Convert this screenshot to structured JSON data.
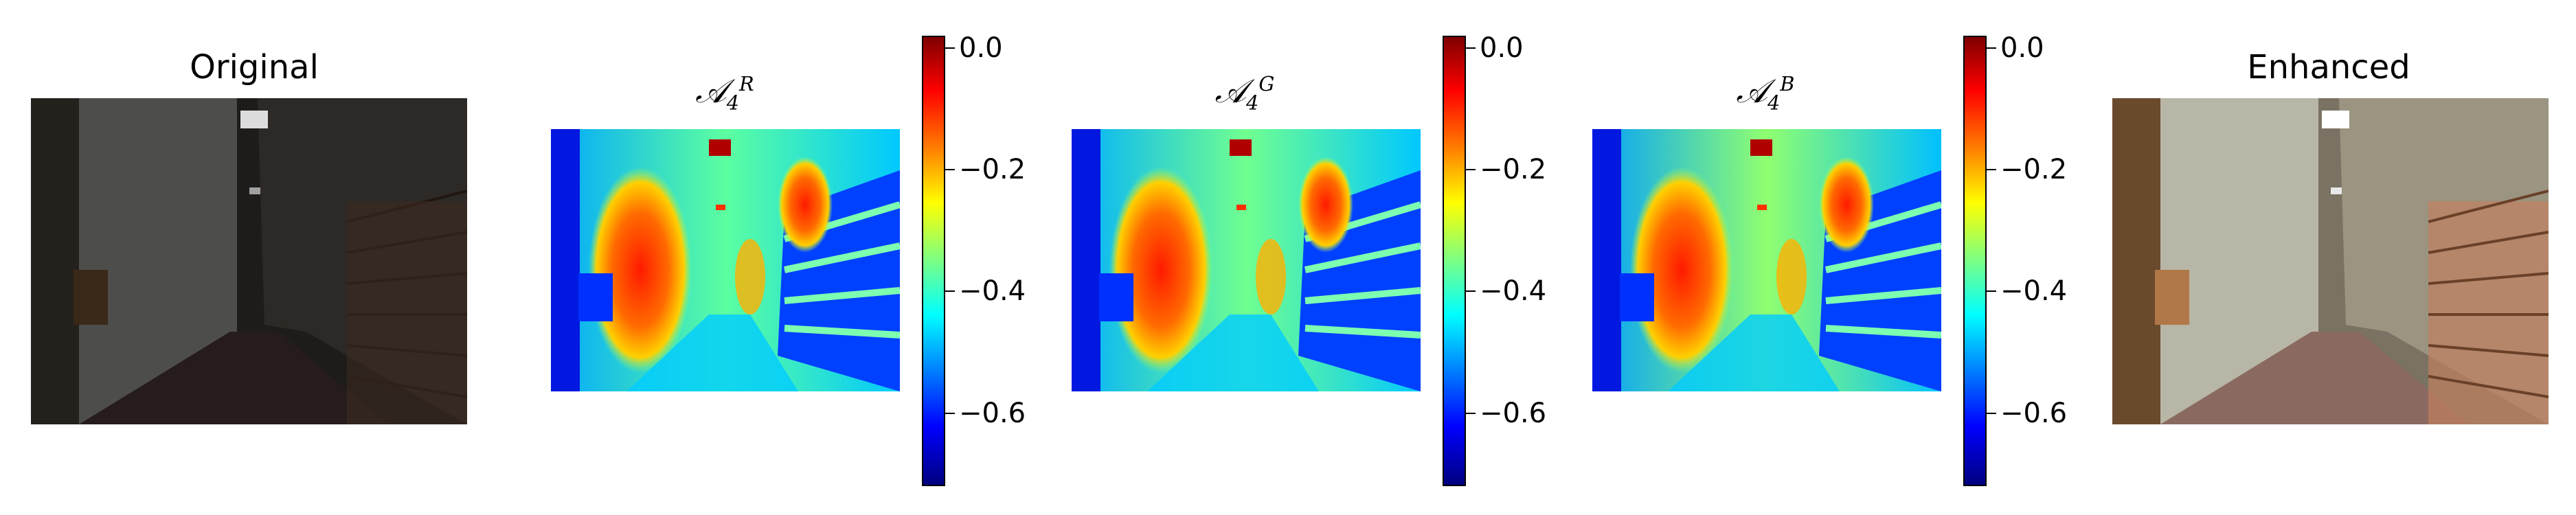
{
  "panels": [
    {
      "id": "original",
      "title": "Original"
    },
    {
      "id": "ar4",
      "title_symbol": "𝒜",
      "title_sub": "4",
      "title_sup": "R"
    },
    {
      "id": "ag4",
      "title_symbol": "𝒜",
      "title_sub": "4",
      "title_sup": "G"
    },
    {
      "id": "ab4",
      "title_symbol": "𝒜",
      "title_sub": "4",
      "title_sup": "B"
    },
    {
      "id": "enhanced",
      "title": "Enhanced"
    }
  ],
  "colorbars": [
    {
      "id": "cbar-r",
      "range": [
        -0.72,
        0.02
      ],
      "ticks": [
        {
          "value": 0.0,
          "label": "0.0"
        },
        {
          "value": -0.2,
          "label": "−0.2"
        },
        {
          "value": -0.4,
          "label": "−0.4"
        },
        {
          "value": -0.6,
          "label": "−0.6"
        }
      ]
    },
    {
      "id": "cbar-g",
      "range": [
        -0.72,
        0.02
      ],
      "ticks": [
        {
          "value": 0.0,
          "label": "0.0"
        },
        {
          "value": -0.2,
          "label": "−0.2"
        },
        {
          "value": -0.4,
          "label": "−0.4"
        },
        {
          "value": -0.6,
          "label": "−0.6"
        }
      ]
    },
    {
      "id": "cbar-b",
      "range": [
        -0.72,
        0.02
      ],
      "ticks": [
        {
          "value": 0.0,
          "label": "0.0"
        },
        {
          "value": -0.2,
          "label": "−0.2"
        },
        {
          "value": -0.4,
          "label": "−0.4"
        },
        {
          "value": -0.6,
          "label": "−0.6"
        }
      ]
    }
  ],
  "colors": {
    "jet_dark_red": "#7f0000",
    "jet_red": "#ff0000",
    "jet_orange": "#ff8000",
    "jet_yellow": "#ffff00",
    "jet_cyan": "#00ffff",
    "jet_blue": "#0000ff",
    "jet_dark_blue": "#00007f"
  }
}
